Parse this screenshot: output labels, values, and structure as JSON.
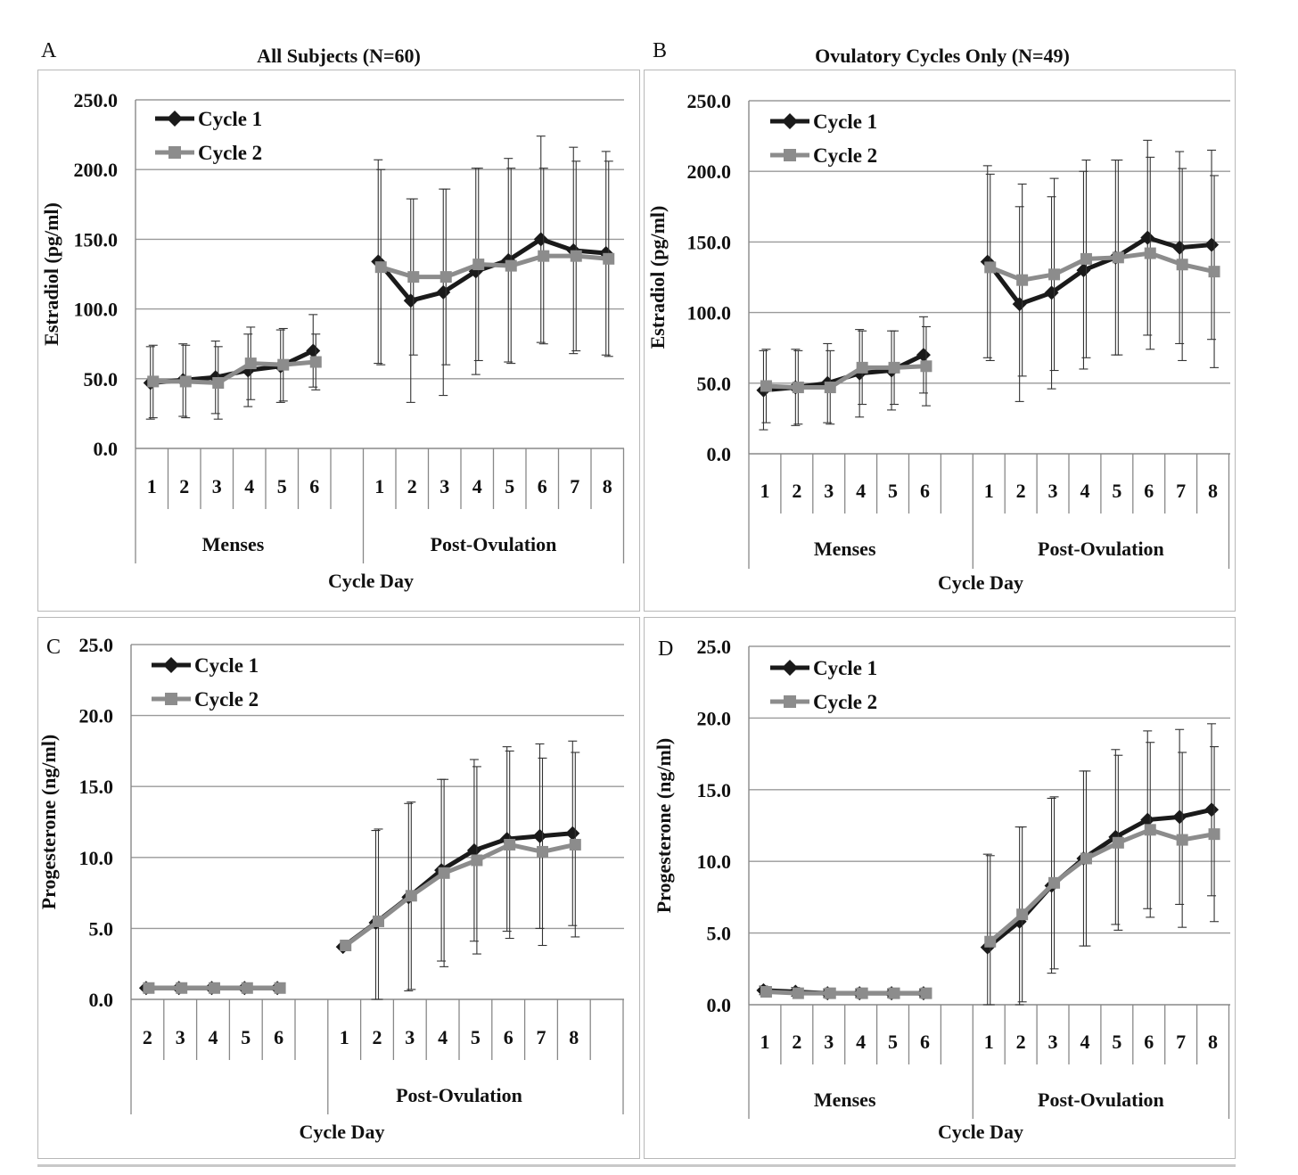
{
  "chart_data": [
    {
      "id": "A",
      "type": "line",
      "letter": "A",
      "title": "All Subjects (N=60)",
      "ylabel": "Estradiol (pg/ml)",
      "xlabel": "Cycle Day",
      "ylim": [
        0,
        250
      ],
      "yticks": [
        "0.0",
        "50.0",
        "100.0",
        "150.0",
        "200.0",
        "250.0"
      ],
      "groups": [
        {
          "label": "Menses",
          "days": [
            "1",
            "2",
            "3",
            "4",
            "5",
            "6"
          ]
        },
        {
          "label": "Post-Ovulation",
          "days": [
            "1",
            "2",
            "3",
            "4",
            "5",
            "6",
            "7",
            "8"
          ]
        }
      ],
      "legend": [
        "Cycle 1",
        "Cycle 2"
      ],
      "legend_position": "top-left",
      "grid": true,
      "series": [
        {
          "name": "Cycle 1",
          "color": "#1a1a1a",
          "marker": "diamond",
          "segments": [
            {
              "y": [
                47,
                49,
                51,
                56,
                59,
                70
              ],
              "err": [
                26,
                26,
                26,
                26,
                26,
                26
              ]
            },
            {
              "y": [
                134,
                106,
                112,
                127,
                135,
                150,
                142,
                140
              ],
              "err": [
                73,
                73,
                74,
                74,
                73,
                74,
                74,
                73
              ]
            }
          ]
        },
        {
          "name": "Cycle 2",
          "color": "#8c8c8c",
          "marker": "square",
          "segments": [
            {
              "y": [
                48,
                48,
                47,
                61,
                60,
                62
              ],
              "err": [
                26,
                26,
                26,
                26,
                26,
                20
              ]
            },
            {
              "y": [
                130,
                123,
                123,
                132,
                131,
                138,
                138,
                136
              ],
              "err": [
                70,
                56,
                63,
                69,
                70,
                63,
                68,
                70
              ]
            }
          ]
        }
      ]
    },
    {
      "id": "B",
      "type": "line",
      "letter": "B",
      "title": "Ovulatory Cycles Only (N=49)",
      "ylabel": "Estradiol (pg/ml)",
      "xlabel": "Cycle Day",
      "ylim": [
        0,
        250
      ],
      "yticks": [
        "0.0",
        "50.0",
        "100.0",
        "150.0",
        "200.0",
        "250.0"
      ],
      "groups": [
        {
          "label": "Menses",
          "days": [
            "1",
            "2",
            "3",
            "4",
            "5",
            "6"
          ]
        },
        {
          "label": "Post-Ovulation",
          "days": [
            "1",
            "2",
            "3",
            "4",
            "5",
            "6",
            "7",
            "8"
          ]
        }
      ],
      "legend": [
        "Cycle 1",
        "Cycle 2"
      ],
      "legend_position": "top-left",
      "grid": true,
      "series": [
        {
          "name": "Cycle 1",
          "color": "#1a1a1a",
          "marker": "diamond",
          "segments": [
            {
              "y": [
                45,
                47,
                50,
                57,
                59,
                70
              ],
              "err": [
                28,
                27,
                28,
                31,
                28,
                27
              ]
            },
            {
              "y": [
                136,
                106,
                114,
                130,
                139,
                153,
                146,
                148
              ],
              "err": [
                68,
                69,
                68,
                70,
                69,
                69,
                68,
                67
              ]
            }
          ]
        },
        {
          "name": "Cycle 2",
          "color": "#8c8c8c",
          "marker": "square",
          "segments": [
            {
              "y": [
                48,
                47,
                47,
                61,
                61,
                62
              ],
              "err": [
                26,
                26,
                26,
                26,
                26,
                28
              ]
            },
            {
              "y": [
                132,
                123,
                127,
                138,
                139,
                142,
                134,
                129
              ],
              "err": [
                66,
                68,
                68,
                70,
                69,
                68,
                68,
                68
              ]
            }
          ]
        }
      ]
    },
    {
      "id": "C",
      "type": "line",
      "letter": "C",
      "title": "",
      "ylabel": "Progesterone (ng/ml)",
      "xlabel": "Cycle Day",
      "ylim": [
        0,
        25
      ],
      "yticks": [
        "0.0",
        "5.0",
        "10.0",
        "15.0",
        "20.0",
        "25.0"
      ],
      "groups": [
        {
          "label": "",
          "days": [
            "2",
            "3",
            "4",
            "5",
            "6"
          ]
        },
        {
          "label": "Post-Ovulation",
          "days": [
            "1",
            "2",
            "3",
            "4",
            "5",
            "6",
            "7",
            "8"
          ]
        }
      ],
      "legend": [
        "Cycle 1",
        "Cycle 2"
      ],
      "legend_position": "top-left",
      "grid": true,
      "series": [
        {
          "name": "Cycle 1",
          "color": "#1a1a1a",
          "marker": "diamond",
          "segments": [
            {
              "y": [
                0.8,
                0.8,
                0.8,
                0.8,
                0.8
              ],
              "err": [
                0,
                0,
                0,
                0,
                0
              ]
            },
            {
              "y": [
                3.7,
                5.4,
                7.2,
                9.1,
                10.5,
                11.3,
                11.5,
                11.7
              ],
              "err": [
                0,
                6.5,
                6.6,
                6.4,
                6.4,
                6.5,
                6.5,
                6.5
              ]
            }
          ]
        },
        {
          "name": "Cycle 2",
          "color": "#8c8c8c",
          "marker": "square",
          "segments": [
            {
              "y": [
                0.8,
                0.8,
                0.8,
                0.8,
                0.8
              ],
              "err": [
                0,
                0,
                0,
                0,
                0
              ]
            },
            {
              "y": [
                3.8,
                5.5,
                7.3,
                8.9,
                9.8,
                10.9,
                10.4,
                10.9
              ],
              "err": [
                0,
                6.5,
                6.6,
                6.6,
                6.6,
                6.6,
                6.6,
                6.5
              ]
            }
          ]
        }
      ]
    },
    {
      "id": "D",
      "type": "line",
      "letter": "D",
      "title": "",
      "ylabel": "Progesterone (ng/ml)",
      "xlabel": "Cycle Day",
      "ylim": [
        0,
        25
      ],
      "yticks": [
        "0.0",
        "5.0",
        "10.0",
        "15.0",
        "20.0",
        "25.0"
      ],
      "groups": [
        {
          "label": "Menses",
          "days": [
            "1",
            "2",
            "3",
            "4",
            "5",
            "6"
          ]
        },
        {
          "label": "Post-Ovulation",
          "days": [
            "1",
            "2",
            "3",
            "4",
            "5",
            "6",
            "7",
            "8"
          ]
        }
      ],
      "legend": [
        "Cycle 1",
        "Cycle 2"
      ],
      "legend_position": "top-left",
      "grid": true,
      "series": [
        {
          "name": "Cycle 1",
          "color": "#1a1a1a",
          "marker": "diamond",
          "segments": [
            {
              "y": [
                1.0,
                0.9,
                0.8,
                0.8,
                0.8,
                0.8
              ],
              "err": [
                0.3,
                0.3,
                0.3,
                0.3,
                0.3,
                0.3
              ]
            },
            {
              "y": [
                4.0,
                5.8,
                8.3,
                10.2,
                11.7,
                12.9,
                13.1,
                13.6
              ],
              "err": [
                6.5,
                6.6,
                6.1,
                6.1,
                6.1,
                6.2,
                6.1,
                6.0
              ]
            }
          ]
        },
        {
          "name": "Cycle 2",
          "color": "#8c8c8c",
          "marker": "square",
          "segments": [
            {
              "y": [
                0.9,
                0.8,
                0.8,
                0.8,
                0.8,
                0.8
              ],
              "err": [
                0.3,
                0.3,
                0.3,
                0.3,
                0.3,
                0.3
              ]
            },
            {
              "y": [
                4.4,
                6.3,
                8.5,
                10.2,
                11.3,
                12.2,
                11.5,
                11.9
              ],
              "err": [
                6.0,
                6.1,
                6.0,
                6.1,
                6.1,
                6.1,
                6.1,
                6.1
              ]
            }
          ]
        }
      ]
    }
  ]
}
